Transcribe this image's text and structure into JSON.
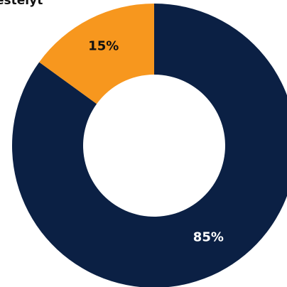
{
  "chart_data": {
    "type": "pie",
    "title": "estelyt",
    "categories": [
      "",
      ""
    ],
    "values": [
      85,
      15
    ],
    "unit": "%",
    "data_labels": [
      "85%",
      "15%"
    ],
    "colors": [
      "#0b2044",
      "#f7971e"
    ],
    "label_colors": [
      "#ffffff",
      "#111111"
    ],
    "donut": true,
    "legend": "none"
  }
}
